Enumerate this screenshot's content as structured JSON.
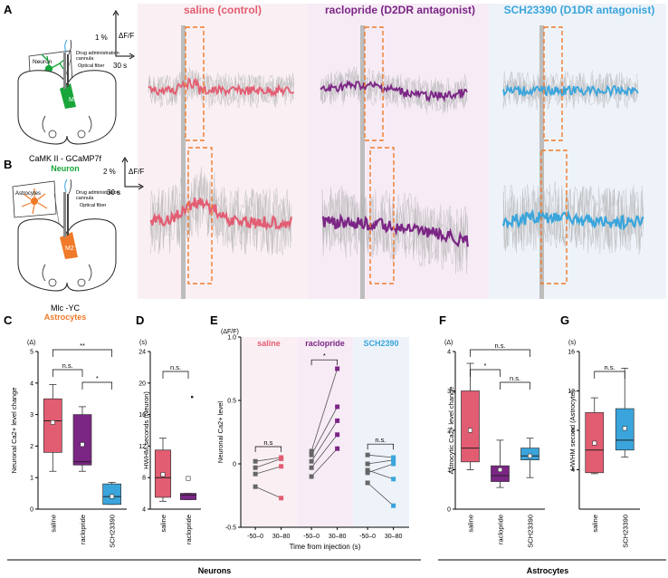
{
  "colors": {
    "saline": "#e35d72",
    "raclopride": "#7b2585",
    "sch": "#3aa5dc",
    "orange": "#f07a2a",
    "green": "#18a53a",
    "grey": "#b3b3b3",
    "bg_saline": "#faf0f3",
    "bg_raclopride": "#f7ecf6",
    "bg_sch": "#eef3fa"
  },
  "panel_labels": {
    "a": "A",
    "b": "B",
    "c": "C",
    "d": "D",
    "e": "E",
    "f": "F",
    "g": "G"
  },
  "traces": {
    "conditions": [
      "saline (control)",
      "raclopride (D2DR antagonist)",
      "SCH23390 (D1DR antagonist)"
    ],
    "scale_a": {
      "y": "1 %",
      "x": "30 s",
      "unit": "ΔF/F"
    },
    "scale_b": {
      "y": "2 %",
      "x": "30 s",
      "unit": "ΔF/F"
    }
  },
  "schematic_a": {
    "cell": "Neuron",
    "admin": "Drug administration",
    "cannula": "cannula",
    "fiber": "Optical fiber",
    "region": "M2",
    "line1": "CaMK II - GCaMP7f",
    "line2": "Neuron"
  },
  "schematic_b": {
    "cell": "Astrocytes",
    "admin": "Drug administration",
    "cannula": "cannula",
    "fiber": "Optical fiber",
    "region": "M2",
    "line1": "Mlc -YC",
    "line2": "Astrocytes"
  },
  "group_labels": {
    "neurons": "Neurons",
    "astrocytes": "Astrocytes"
  },
  "chart_data": [
    {
      "panel": "C",
      "type": "box",
      "unit": "(Δ)",
      "ylabel": "Neuronal Ca2+ level change",
      "ylim": [
        0,
        5
      ],
      "yticks": [
        "0",
        "1",
        "2",
        "3",
        "4",
        "5"
      ],
      "categories": [
        "saline",
        "raclopride",
        "SCH23390"
      ],
      "boxes": [
        {
          "min": 1.2,
          "q1": 1.8,
          "median": 2.8,
          "q3": 3.5,
          "max": 3.95,
          "mean": 2.75
        },
        {
          "min": 1.2,
          "q1": 1.4,
          "median": 1.5,
          "q3": 3.0,
          "max": 3.25,
          "mean": 2.05
        },
        {
          "min": 0.15,
          "q1": 0.15,
          "median": 0.4,
          "q3": 0.8,
          "max": 0.85,
          "mean": 0.4
        }
      ],
      "signif": [
        {
          "from": 0,
          "to": 1,
          "label": "n.s."
        },
        {
          "from": 0,
          "to": 2,
          "label": "**"
        },
        {
          "from": 1,
          "to": 2,
          "label": "*"
        }
      ]
    },
    {
      "panel": "D",
      "type": "box",
      "unit": "(s)",
      "ylabel": "HWHM seconds (Neuron)",
      "ylim": [
        4,
        24
      ],
      "yticks": [
        "4",
        "8",
        "12",
        "16",
        "20",
        "24"
      ],
      "categories": [
        "saline",
        "raclopride"
      ],
      "boxes": [
        {
          "min": 5.0,
          "q1": 5.5,
          "median": 8.0,
          "q3": 11.5,
          "max": 13.0,
          "mean": 8.4
        },
        {
          "min": 5.2,
          "q1": 5.2,
          "median": 5.8,
          "q3": 6.0,
          "max": 6.0,
          "mean": 7.9,
          "outlier": 18.2
        }
      ],
      "signif": [
        {
          "from": 0,
          "to": 1,
          "label": "n.s."
        }
      ]
    },
    {
      "panel": "E",
      "type": "paired",
      "unit": "(ΔF/F)",
      "ylabel": "Neuronal Ca2+ level",
      "xlabel": "Time from injection (s)",
      "ylim": [
        -0.5,
        1.0
      ],
      "yticks": [
        "-0.5",
        "0",
        "0.5",
        "1.0"
      ],
      "ticks": [
        "-50–0",
        "30–80"
      ],
      "groups": [
        {
          "name": "saline",
          "pairs": [
            [
              0.02,
              0.05
            ],
            [
              -0.03,
              0.04
            ],
            [
              -0.08,
              -0.02
            ],
            [
              -0.18,
              -0.27
            ]
          ],
          "signif": "n.s"
        },
        {
          "name": "raclopride",
          "pairs": [
            [
              0.1,
              0.75
            ],
            [
              0.07,
              0.45
            ],
            [
              0.02,
              0.34
            ],
            [
              -0.03,
              0.23
            ],
            [
              -0.1,
              0.12
            ]
          ],
          "signif": "*"
        },
        {
          "name": "SCH2390",
          "pairs": [
            [
              0.07,
              0.05
            ],
            [
              0.0,
              0.03
            ],
            [
              -0.07,
              0.0
            ],
            [
              -0.05,
              -0.12
            ],
            [
              -0.15,
              -0.33
            ]
          ],
          "signif": "n.s."
        }
      ]
    },
    {
      "panel": "F",
      "type": "box",
      "unit": "(Δ)",
      "ylabel": "Astrocytic Ca2+ level change",
      "ylim": [
        0,
        4
      ],
      "yticks": [
        "0",
        "1",
        "2",
        "3",
        "4"
      ],
      "categories": [
        "saline",
        "raclopride",
        "SCH23390"
      ],
      "boxes": [
        {
          "min": 1.0,
          "q1": 1.2,
          "median": 1.55,
          "q3": 3.0,
          "max": 3.7,
          "mean": 2.0
        },
        {
          "min": 0.55,
          "q1": 0.7,
          "median": 0.85,
          "q3": 1.1,
          "max": 1.75,
          "mean": 1.0
        },
        {
          "min": 0.8,
          "q1": 1.25,
          "median": 1.35,
          "q3": 1.55,
          "max": 1.8,
          "mean": 1.35
        }
      ],
      "signif": [
        {
          "from": 0,
          "to": 1,
          "label": "*"
        },
        {
          "from": 0,
          "to": 2,
          "label": "n.s."
        },
        {
          "from": 1,
          "to": 2,
          "label": "n.s."
        }
      ]
    },
    {
      "panel": "G",
      "type": "box",
      "unit": "(s)",
      "ylabel": "HWHM second (Astrocyte)",
      "ylim": [
        0,
        16
      ],
      "yticks": [
        "4",
        "8",
        "12",
        "16"
      ],
      "categories": [
        "saline",
        "SCH23390"
      ],
      "boxes": [
        {
          "min": 3.6,
          "q1": 3.7,
          "median": 6.0,
          "q3": 9.8,
          "max": 11.3,
          "mean": 6.7
        },
        {
          "min": 5.3,
          "q1": 6.0,
          "median": 7.0,
          "q3": 10.2,
          "max": 14.3,
          "mean": 8.2
        }
      ],
      "signif": [
        {
          "from": 0,
          "to": 1,
          "label": "n.s."
        }
      ]
    }
  ]
}
